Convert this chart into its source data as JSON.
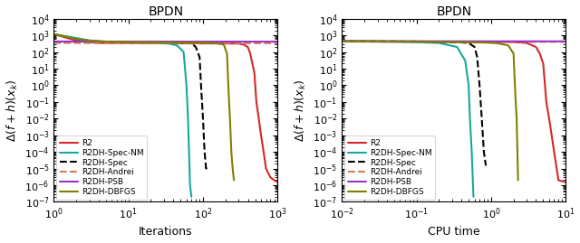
{
  "title": "BPDN",
  "ylabel": "$\\Delta(f+h)(x_k)$",
  "xlabel_left": "Iterations",
  "xlabel_right": "CPU time",
  "legend_labels": [
    "R2",
    "R2DH-Spec-NM",
    "R2DH-Spec",
    "R2DH-Andrei",
    "R2DH-PSB",
    "R2DH-DBFGS"
  ],
  "colors": {
    "R2": "#d62728",
    "R2DH-Spec-NM": "#17a89e",
    "R2DH-Spec": "#000000",
    "R2DH-Andrei": "#d08050",
    "R2DH-PSB": "#9b30d0",
    "R2DH-DBFGS": "#808000"
  },
  "linestyles": {
    "R2": "-",
    "R2DH-Spec-NM": "-",
    "R2DH-Spec": "--",
    "R2DH-Andrei": "--",
    "R2DH-PSB": "-",
    "R2DH-DBFGS": "-"
  },
  "linewidths": {
    "R2": 1.5,
    "R2DH-Spec-NM": 1.5,
    "R2DH-Spec": 1.5,
    "R2DH-Andrei": 1.5,
    "R2DH-PSB": 1.5,
    "R2DH-DBFGS": 1.5
  },
  "left_plot": {
    "R2": {
      "x": [
        1,
        1.5,
        2,
        4,
        300,
        350,
        400,
        430,
        460,
        490,
        520,
        560,
        600,
        650,
        700,
        800,
        900,
        1000
      ],
      "y": [
        1200,
        700,
        500,
        350,
        320,
        280,
        200,
        80,
        20,
        5,
        0.1,
        0.01,
        0.001,
        0.0001,
        1e-05,
        3e-06,
        2e-06,
        1.5e-06
      ]
    },
    "R2DH-Spec-NM": {
      "x": [
        1,
        3,
        5,
        8,
        12,
        18,
        25,
        35,
        45,
        55,
        60,
        63,
        65,
        67,
        70
      ],
      "y": [
        1200,
        500,
        420,
        400,
        380,
        360,
        340,
        320,
        250,
        100,
        1.0,
        0.01,
        0.0001,
        1e-06,
        2e-07
      ]
    },
    "R2DH-Spec": {
      "x": [
        1,
        5,
        10,
        20,
        30,
        50,
        70,
        80,
        90,
        95,
        100,
        105,
        110,
        115
      ],
      "y": [
        400,
        390,
        380,
        370,
        360,
        350,
        340,
        200,
        50,
        0.5,
        0.01,
        0.0001,
        1e-05,
        1.5e-05
      ]
    },
    "R2DH-Andrei": {
      "x": [
        1,
        10,
        100,
        1000
      ],
      "y": [
        350,
        345,
        340,
        338
      ]
    },
    "R2DH-PSB": {
      "x": [
        1,
        10,
        100,
        1000
      ],
      "y": [
        430,
        425,
        422,
        420
      ]
    },
    "R2DH-DBFGS": {
      "x": [
        1,
        2,
        3,
        5,
        10,
        20,
        50,
        100,
        150,
        190,
        210,
        220,
        230,
        240,
        250,
        260
      ],
      "y": [
        1200,
        600,
        480,
        420,
        400,
        385,
        370,
        360,
        340,
        280,
        80,
        0.5,
        0.01,
        0.0001,
        1e-05,
        2e-06
      ]
    }
  },
  "right_plot": {
    "R2": {
      "x": [
        0.005,
        0.008,
        0.01,
        0.05,
        0.1,
        2.0,
        3.0,
        4.0,
        4.5,
        5.0,
        5.5,
        6.0,
        7.0,
        8.0,
        10.0
      ],
      "y": [
        450,
        440,
        430,
        420,
        410,
        400,
        350,
        200,
        80,
        20,
        0.1,
        0.01,
        0.0001,
        2e-06,
        1.5e-06
      ]
    },
    "R2DH-Spec-NM": {
      "x": [
        0.005,
        0.02,
        0.05,
        0.1,
        0.2,
        0.35,
        0.45,
        0.5,
        0.52,
        0.55,
        0.58
      ],
      "y": [
        450,
        430,
        410,
        390,
        350,
        200,
        30,
        1.0,
        0.01,
        0.0001,
        2e-07
      ]
    },
    "R2DH-Spec": {
      "x": [
        0.005,
        0.05,
        0.1,
        0.2,
        0.35,
        0.5,
        0.6,
        0.65,
        0.7,
        0.75,
        0.8,
        0.85
      ],
      "y": [
        450,
        440,
        430,
        410,
        390,
        350,
        200,
        50,
        1,
        0.01,
        0.0001,
        1.5e-05
      ]
    },
    "R2DH-Andrei": {
      "x": [
        0.005,
        0.1,
        1,
        10
      ],
      "y": [
        420,
        415,
        410,
        408
      ]
    },
    "R2DH-PSB": {
      "x": [
        0.005,
        0.1,
        1,
        10
      ],
      "y": [
        450,
        445,
        440,
        438
      ]
    },
    "R2DH-DBFGS": {
      "x": [
        0.005,
        0.05,
        0.1,
        0.3,
        0.5,
        0.8,
        1.2,
        1.7,
        2.0,
        2.1,
        2.2,
        2.3
      ],
      "y": [
        450,
        430,
        415,
        400,
        385,
        370,
        340,
        250,
        80,
        0.5,
        0.01,
        2e-06
      ]
    }
  }
}
